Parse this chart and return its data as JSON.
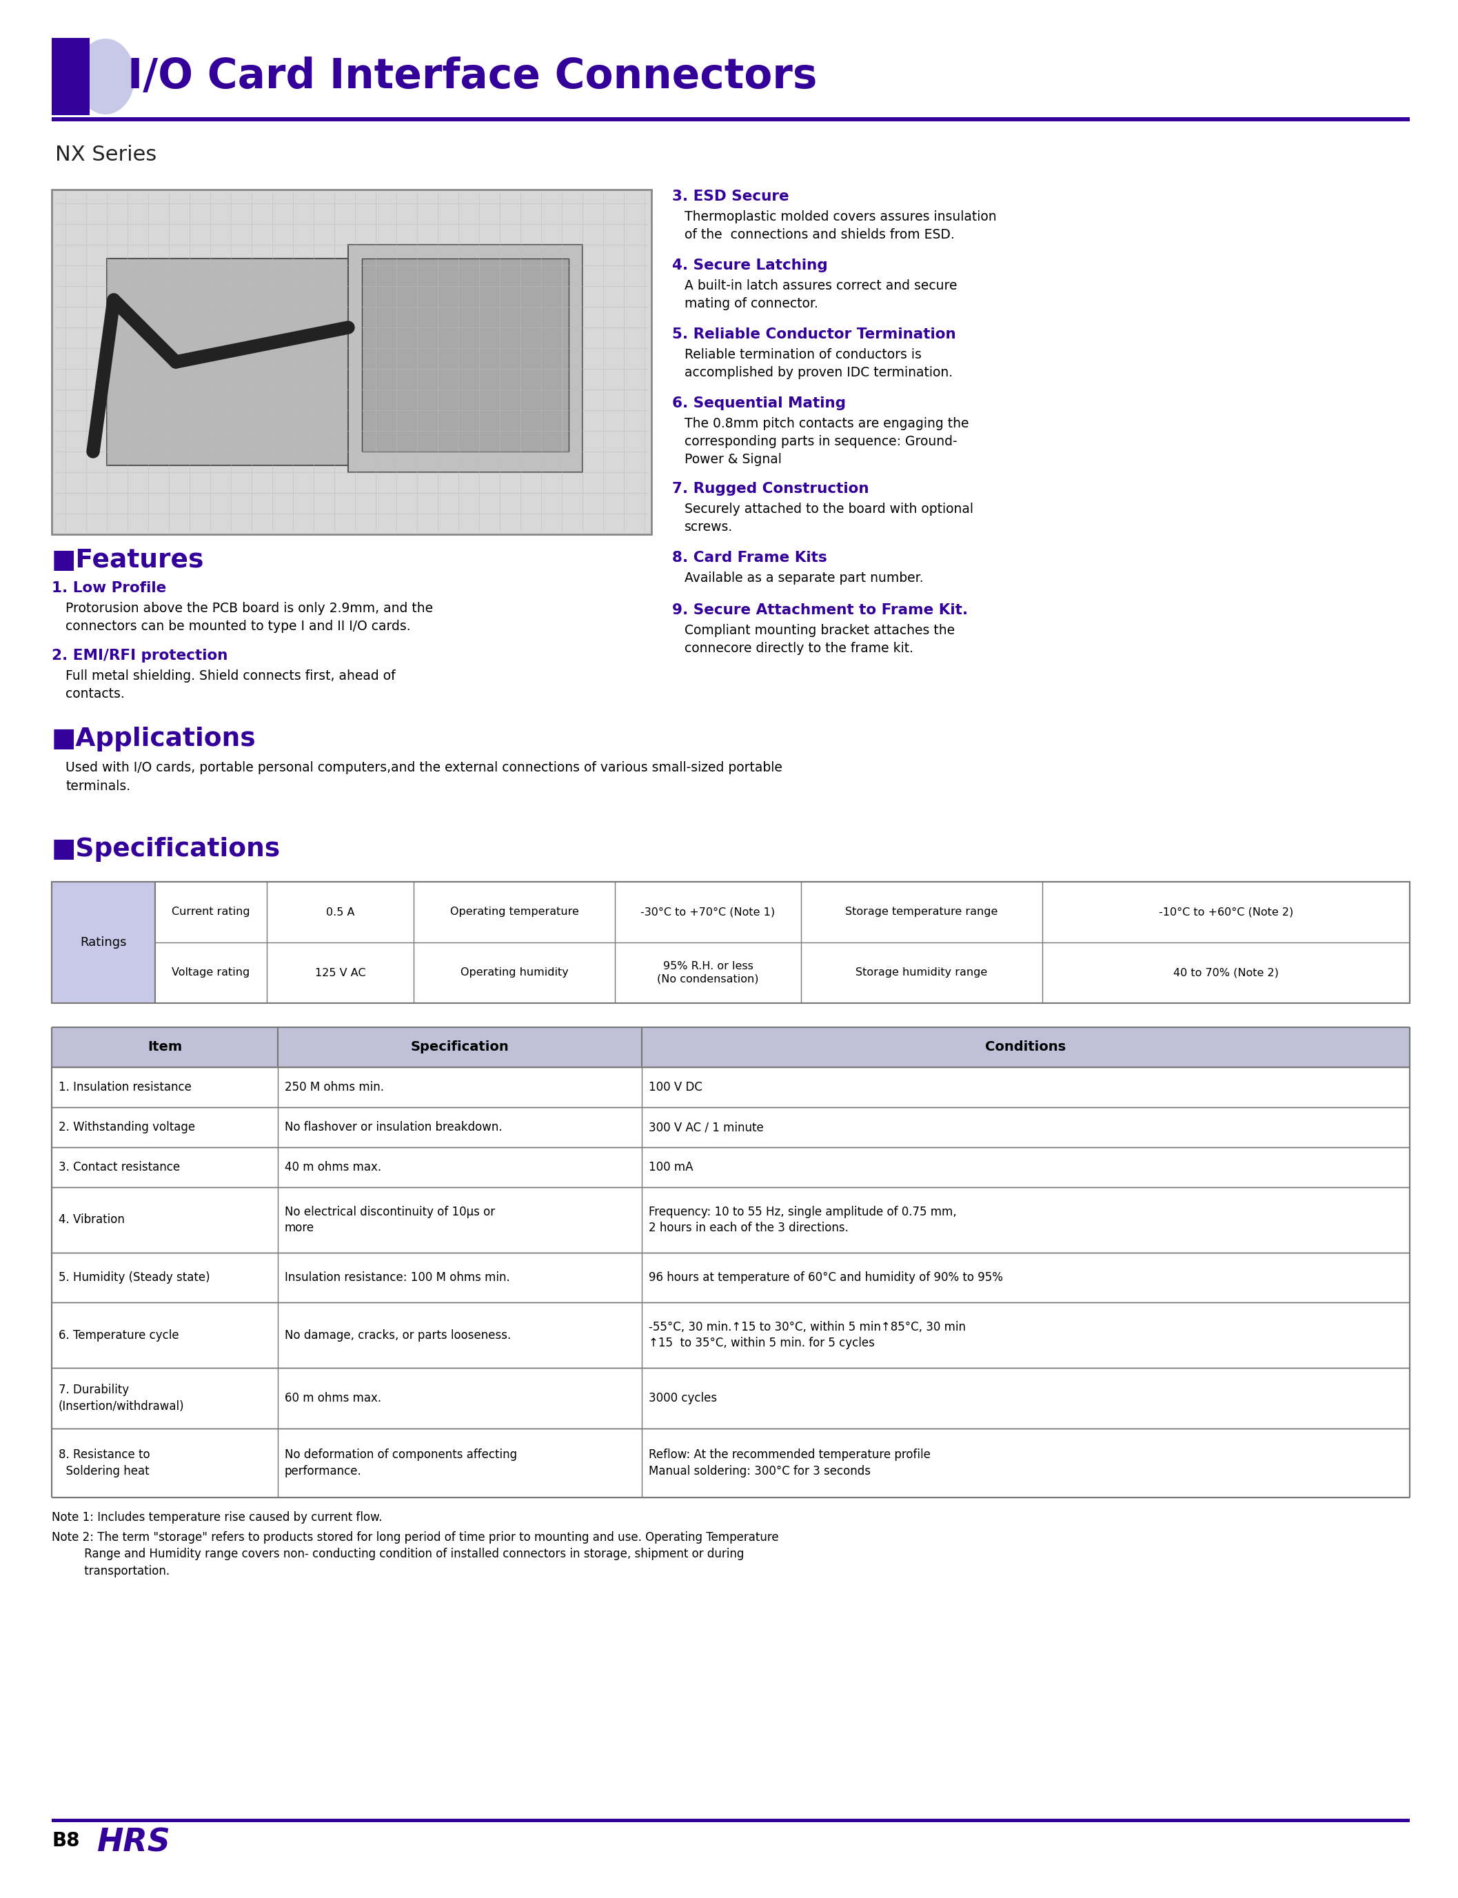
{
  "title": "I/O Card Interface Connectors",
  "subtitle": "NX Series",
  "purple": "#330099",
  "light_purple": "#c8c8e8",
  "table_header_bg": "#c0c0d8",
  "border_color": "#777777",
  "page_bg": "#ffffff",
  "features_left": [
    {
      "num": "1.",
      "title": "Low Profile",
      "text": "Protorusion above the PCB board is only 2.9mm, and the\nconnectors can be mounted to type I and II I/O cards."
    },
    {
      "num": "2.",
      "title": "EMI/RFI protection",
      "text": "Full metal shielding. Shield connects first, ahead of\ncontacts."
    }
  ],
  "features_right": [
    {
      "num": "3.",
      "title": "ESD Secure",
      "text": "Thermoplastic molded covers assures insulation\nof the  connections and shields from ESD."
    },
    {
      "num": "4.",
      "title": "Secure Latching",
      "text": "A built-in latch assures correct and secure\nmating of connector."
    },
    {
      "num": "5.",
      "title": "Reliable Conductor Termination",
      "text": "Reliable termination of conductors is\naccomplished by proven IDC termination."
    },
    {
      "num": "6.",
      "title": "Sequential Mating",
      "text": "The 0.8mm pitch contacts are engaging the\ncorresponding parts in sequence: Ground-\nPower & Signal"
    },
    {
      "num": "7.",
      "title": "Rugged Construction",
      "text": "Securely attached to the board with optional\nscrews."
    },
    {
      "num": "8.",
      "title": "Card Frame Kits",
      "text": "Available as a separate part number."
    },
    {
      "num": "9.",
      "title": "Secure Attachment to Frame Kit.",
      "text": "Compliant mounting bracket attaches the\nconnecore directly to the frame kit."
    }
  ],
  "applications_text": "Used with I/O cards, portable personal computers,and the external connections of various small-sized portable\nterminals.",
  "ratings_rows": [
    [
      "Current rating",
      "0.5 A",
      "Operating temperature",
      "-30°C to +70°C (Note 1)",
      "Storage temperature range",
      "-10°C to +60°C (Note 2)"
    ],
    [
      "Voltage rating",
      "125 V AC",
      "Operating humidity",
      "95% R.H. or less\n(No condensation)",
      "Storage humidity range",
      "40 to 70% (Note 2)"
    ]
  ],
  "spec_headers": [
    "Item",
    "Specification",
    "Conditions"
  ],
  "spec_rows": [
    [
      "1. Insulation resistance",
      "250 M ohms min.",
      "100 V DC"
    ],
    [
      "2. Withstanding voltage",
      "No flashover or insulation breakdown.",
      "300 V AC / 1 minute"
    ],
    [
      "3. Contact resistance",
      "40 m ohms max.",
      "100 mA"
    ],
    [
      "4. Vibration",
      "No electrical discontinuity of 10μs or\nmore",
      "Frequency: 10 to 55 Hz, single amplitude of 0.75 mm,\n2 hours in each of the 3 directions."
    ],
    [
      "5. Humidity (Steady state)",
      "Insulation resistance: 100 M ohms min.",
      "96 hours at temperature of 60°C and humidity of 90% to 95%"
    ],
    [
      "6. Temperature cycle",
      "No damage, cracks, or parts looseness.",
      "-55°C, 30 min.↑15 to 30°C, within 5 min↑85°C, 30 min\n↑15  to 35°C, within 5 min. for 5 cycles"
    ],
    [
      "7. Durability\n(Insertion/withdrawal)",
      "60 m ohms max.",
      "3000 cycles"
    ],
    [
      "8. Resistance to\n  Soldering heat",
      "No deformation of components affecting\nperformance.",
      "Reflow: At the recommended temperature profile\nManual soldering: 300°C for 3 seconds"
    ]
  ],
  "notes": [
    "Note 1: Includes temperature rise caused by current flow.",
    "Note 2: The term \"storage\" refers to products stored for long period of time prior to mounting and use. Operating Temperature\n         Range and Humidity range covers non- conducting condition of installed connectors in storage, shipment or during\n         transportation."
  ],
  "page_label": "B8",
  "spec_row_heights": [
    58,
    58,
    58,
    95,
    72,
    95,
    88,
    100
  ]
}
